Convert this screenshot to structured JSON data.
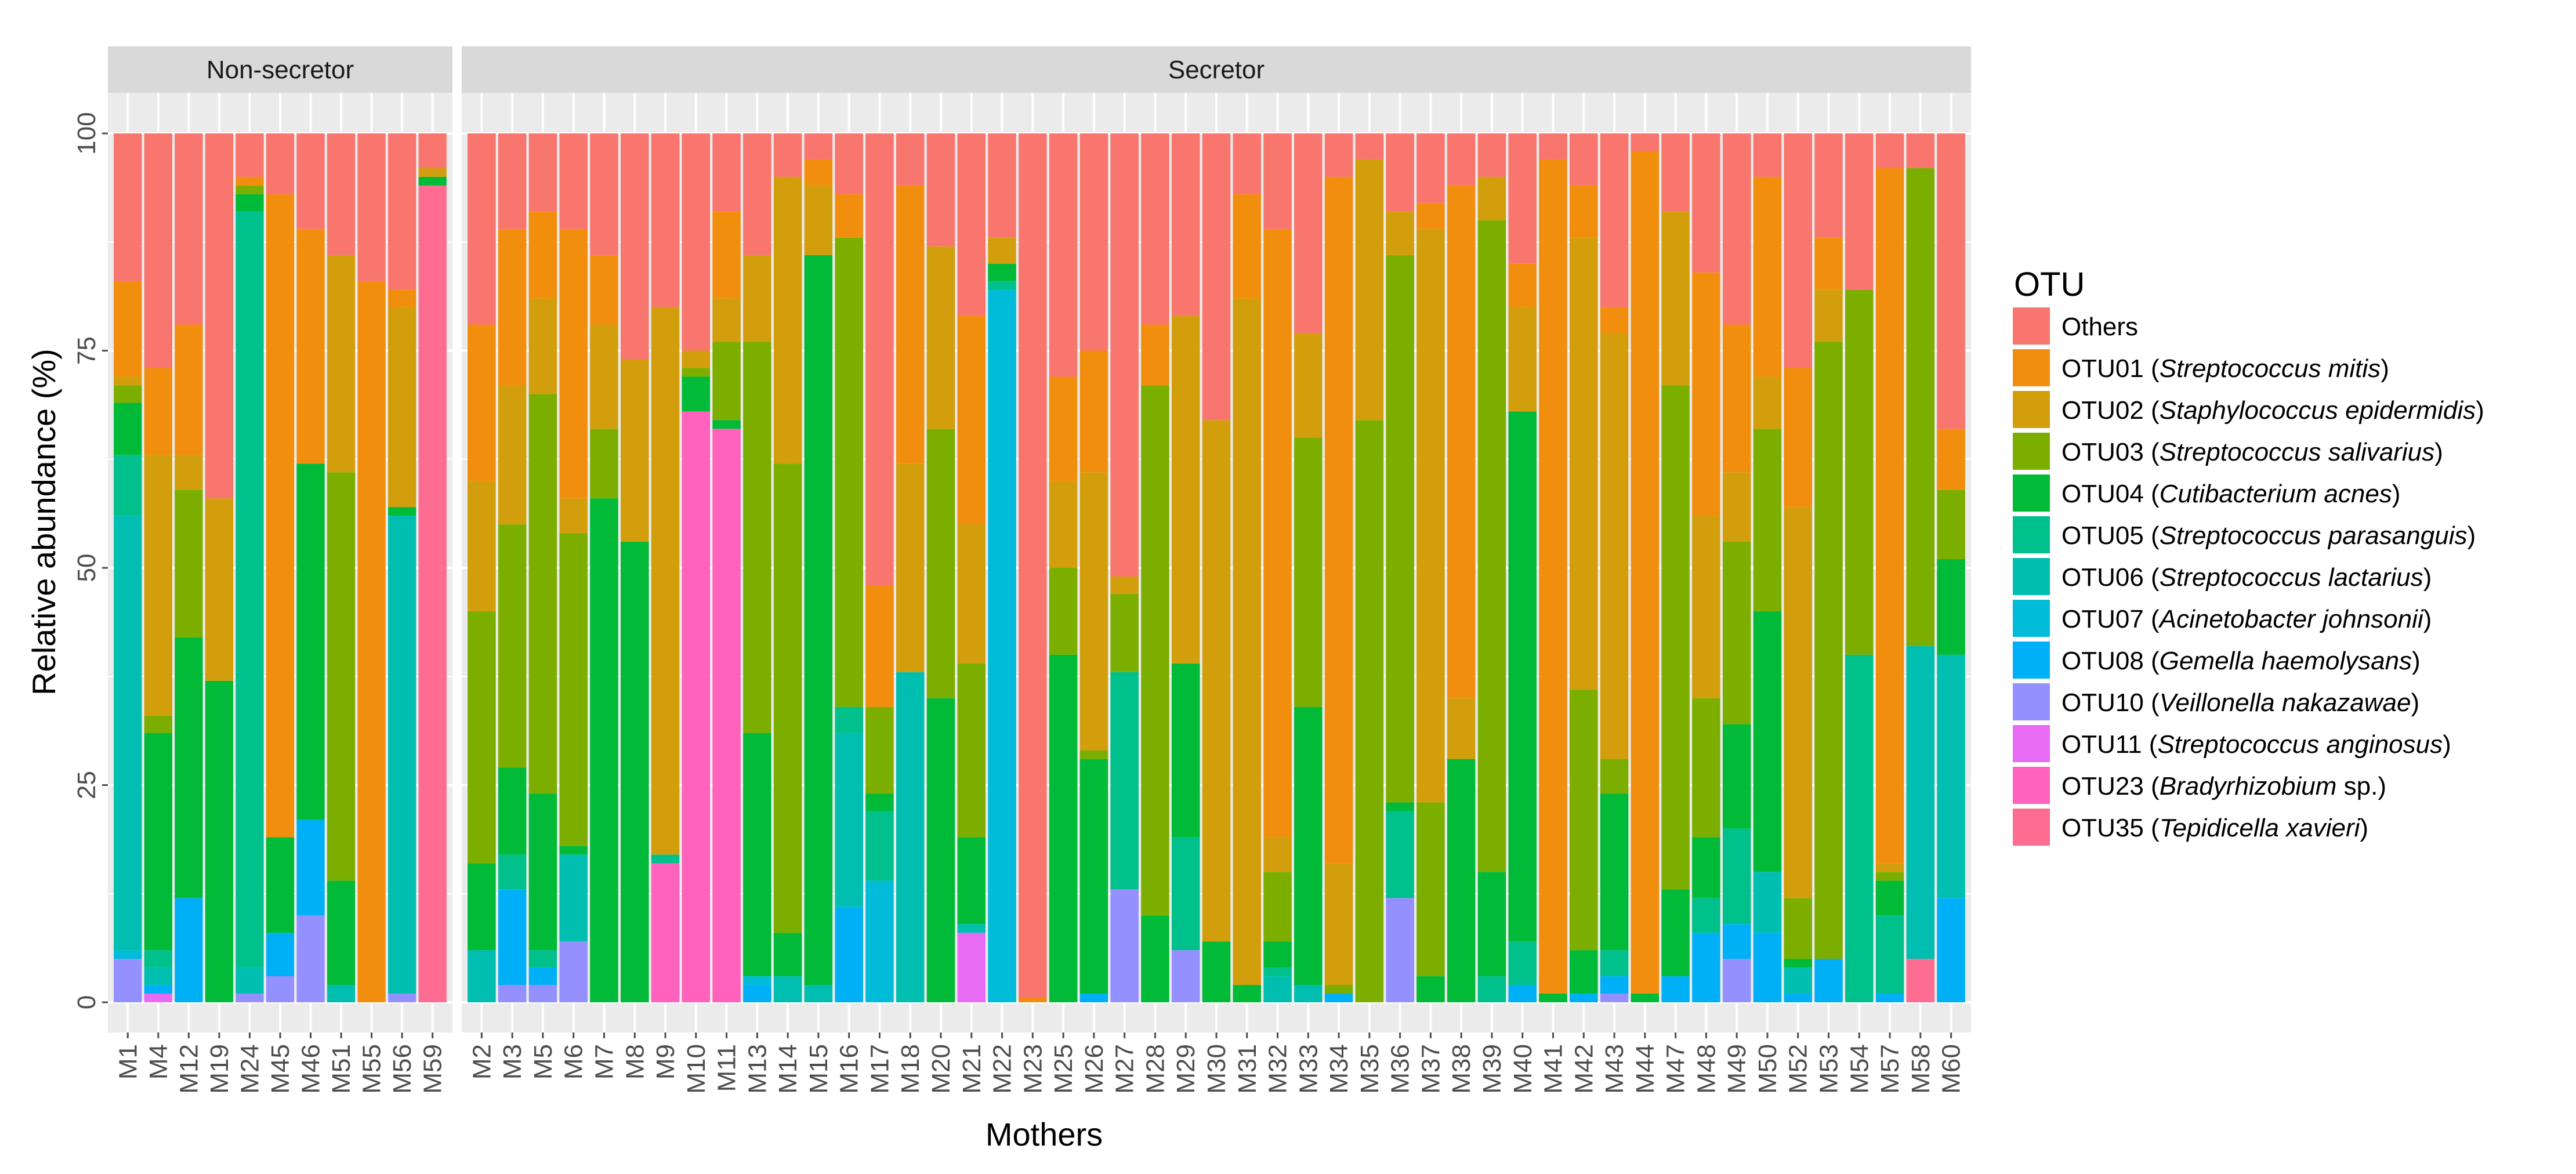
{
  "chart_data": {
    "type": "stacked-bar",
    "xlabel": "Mothers",
    "ylabel": "Relative abundance (%)",
    "ylim": [
      0,
      100
    ],
    "yticks": [
      0,
      25,
      50,
      75,
      100
    ],
    "legend_title": "OTU",
    "legend_position": "right",
    "series": [
      {
        "id": "others",
        "label": "Others",
        "italic": "",
        "suffix": "",
        "color": "#F8766D"
      },
      {
        "id": "otu01",
        "label": "OTU01",
        "italic": "Streptococcus mitis",
        "suffix": "",
        "color": "#F28E0E"
      },
      {
        "id": "otu02",
        "label": "OTU02",
        "italic": "Staphylococcus epidermidis",
        "suffix": "",
        "color": "#D29E0C"
      },
      {
        "id": "otu03",
        "label": "OTU03",
        "italic": "Streptococcus salivarius",
        "suffix": "",
        "color": "#7CAE00"
      },
      {
        "id": "otu04",
        "label": "OTU04",
        "italic": "Cutibacterium acnes",
        "suffix": "",
        "color": "#00BA38"
      },
      {
        "id": "otu05",
        "label": "OTU05",
        "italic": "Streptococcus parasanguis",
        "suffix": "",
        "color": "#00C08B"
      },
      {
        "id": "otu06",
        "label": "OTU06",
        "italic": "Streptococcus lactarius",
        "suffix": "",
        "color": "#00BFB0"
      },
      {
        "id": "otu07",
        "label": "OTU07",
        "italic": "Acinetobacter johnsonii",
        "suffix": "",
        "color": "#00BCD8"
      },
      {
        "id": "otu08",
        "label": "OTU08",
        "italic": "Gemella haemolysans",
        "suffix": "",
        "color": "#00B0F6"
      },
      {
        "id": "otu10",
        "label": "OTU10",
        "italic": "Veillonella nakazawae",
        "suffix": "",
        "color": "#9590FF"
      },
      {
        "id": "otu11",
        "label": "OTU11",
        "italic": "Streptococcus anginosus",
        "suffix": "",
        "color": "#E76BF3"
      },
      {
        "id": "otu23",
        "label": "OTU23",
        "italic": "Bradyrhizobium",
        "suffix": " sp.",
        "color": "#FF62BC"
      },
      {
        "id": "otu35",
        "label": "OTU35",
        "italic": "Tepidicella xavieri",
        "suffix": "",
        "color": "#FF6C91"
      }
    ],
    "panels": [
      {
        "label": "Non-secretor",
        "bars": [
          {
            "name": "M1",
            "segments": {
              "otu10": 5,
              "otu07": 1,
              "otu06": 50,
              "otu05": 7,
              "otu04": 6,
              "otu03": 2,
              "otu02": 1,
              "otu01": 11,
              "others": 17
            }
          },
          {
            "name": "M4",
            "segments": {
              "otu11": 1,
              "otu08": 1,
              "otu06": 2,
              "otu05": 2,
              "otu04": 25,
              "otu03": 2,
              "otu02": 30,
              "otu01": 10,
              "others": 27
            }
          },
          {
            "name": "M12",
            "segments": {
              "otu08": 12,
              "otu04": 30,
              "otu03": 17,
              "otu02": 4,
              "otu01": 15,
              "others": 22
            }
          },
          {
            "name": "M19",
            "segments": {
              "otu04": 37,
              "otu02": 21,
              "others": 42
            }
          },
          {
            "name": "M24",
            "segments": {
              "otu10": 1,
              "otu06": 3,
              "otu05": 87,
              "otu04": 2,
              "otu03": 1,
              "otu01": 1,
              "others": 5
            }
          },
          {
            "name": "M45",
            "segments": {
              "otu10": 3,
              "otu08": 5,
              "otu04": 11,
              "otu01": 74,
              "others": 7
            }
          },
          {
            "name": "M46",
            "segments": {
              "otu10": 10,
              "otu08": 11,
              "otu04": 41,
              "otu01": 27,
              "others": 11
            }
          },
          {
            "name": "M51",
            "segments": {
              "otu06": 2,
              "otu04": 12,
              "otu03": 47,
              "otu02": 25,
              "others": 14
            }
          },
          {
            "name": "M55",
            "segments": {
              "otu01": 83,
              "others": 17
            }
          },
          {
            "name": "M56",
            "segments": {
              "otu10": 1,
              "otu06": 55,
              "otu04": 1,
              "otu02": 23,
              "otu01": 2,
              "others": 18
            }
          },
          {
            "name": "M59",
            "segments": {
              "otu35": 94,
              "otu04": 1,
              "otu02": 1,
              "others": 4
            }
          }
        ]
      },
      {
        "label": "Secretor",
        "bars": [
          {
            "name": "M2",
            "segments": {
              "otu06": 6,
              "otu04": 10,
              "otu03": 29,
              "otu02": 15,
              "otu01": 18,
              "others": 22
            }
          },
          {
            "name": "M3",
            "segments": {
              "otu10": 2,
              "otu08": 11,
              "otu05": 4,
              "otu04": 10,
              "otu03": 28,
              "otu02": 16,
              "otu01": 18,
              "others": 11
            }
          },
          {
            "name": "M5",
            "segments": {
              "otu10": 2,
              "otu08": 2,
              "otu05": 2,
              "otu04": 18,
              "otu03": 46,
              "otu02": 11,
              "otu01": 10,
              "others": 9
            }
          },
          {
            "name": "M6",
            "segments": {
              "otu10": 7,
              "otu06": 10,
              "otu04": 1,
              "otu03": 36,
              "otu02": 4,
              "otu01": 31,
              "others": 11
            }
          },
          {
            "name": "M7",
            "segments": {
              "otu04": 58,
              "otu03": 8,
              "otu02": 12,
              "otu01": 8,
              "others": 14
            }
          },
          {
            "name": "M8",
            "segments": {
              "otu04": 53,
              "otu02": 21,
              "others": 26
            }
          },
          {
            "name": "M9",
            "segments": {
              "otu23": 16,
              "otu05": 1,
              "otu02": 63,
              "others": 20
            }
          },
          {
            "name": "M10",
            "segments": {
              "otu23": 68,
              "otu04": 4,
              "otu03": 1,
              "otu02": 2,
              "others": 25
            }
          },
          {
            "name": "M11",
            "segments": {
              "otu23": 66,
              "otu04": 1,
              "otu03": 9,
              "otu02": 5,
              "otu01": 10,
              "others": 9
            }
          },
          {
            "name": "M13",
            "segments": {
              "otu08": 2,
              "otu07": 1,
              "otu04": 28,
              "otu03": 45,
              "otu02": 10,
              "others": 14
            }
          },
          {
            "name": "M14",
            "segments": {
              "otu06": 3,
              "otu04": 5,
              "otu03": 54,
              "otu02": 33,
              "others": 5
            }
          },
          {
            "name": "M15",
            "segments": {
              "otu06": 2,
              "otu04": 84,
              "otu02": 8,
              "otu01": 3,
              "others": 3
            }
          },
          {
            "name": "M16",
            "segments": {
              "otu08": 11,
              "otu06": 20,
              "otu05": 3,
              "otu03": 54,
              "otu01": 5,
              "others": 7
            }
          },
          {
            "name": "M17",
            "segments": {
              "otu07": 14,
              "otu05": 8,
              "otu04": 2,
              "otu03": 10,
              "otu01": 14,
              "others": 52
            }
          },
          {
            "name": "M18",
            "segments": {
              "otu06": 38,
              "otu02": 24,
              "otu01": 32,
              "others": 6
            }
          },
          {
            "name": "M20",
            "segments": {
              "otu04": 35,
              "otu03": 31,
              "otu02": 21,
              "others": 13
            }
          },
          {
            "name": "M21",
            "segments": {
              "otu11": 8,
              "otu06": 1,
              "otu04": 10,
              "otu03": 20,
              "otu02": 16,
              "otu01": 24,
              "others": 21
            }
          },
          {
            "name": "M22",
            "segments": {
              "otu07": 82,
              "otu05": 1,
              "otu04": 2,
              "otu02": 3,
              "others": 12
            }
          },
          {
            "name": "M23",
            "segments": {
              "otu01": 0.5,
              "others": 99.5
            }
          },
          {
            "name": "M25",
            "segments": {
              "otu04": 40,
              "otu03": 10,
              "otu02": 10,
              "otu01": 12,
              "others": 28
            }
          },
          {
            "name": "M26",
            "segments": {
              "otu08": 1,
              "otu04": 27,
              "otu03": 1,
              "otu02": 32,
              "otu01": 14,
              "others": 25
            }
          },
          {
            "name": "M27",
            "segments": {
              "otu10": 13,
              "otu05": 25,
              "otu03": 9,
              "otu02": 2,
              "others": 51
            }
          },
          {
            "name": "M28",
            "segments": {
              "otu04": 10,
              "otu03": 61,
              "otu01": 7,
              "others": 22
            }
          },
          {
            "name": "M29",
            "segments": {
              "otu10": 6,
              "otu05": 13,
              "otu04": 20,
              "otu02": 40,
              "others": 21
            }
          },
          {
            "name": "M30",
            "segments": {
              "otu04": 7,
              "otu02": 60,
              "others": 33
            }
          },
          {
            "name": "M31",
            "segments": {
              "otu04": 2,
              "otu02": 79,
              "otu01": 12,
              "others": 7
            }
          },
          {
            "name": "M32",
            "segments": {
              "otu06": 3,
              "otu05": 1,
              "otu04": 3,
              "otu03": 8,
              "otu02": 4,
              "otu01": 70,
              "others": 11
            }
          },
          {
            "name": "M33",
            "segments": {
              "otu06": 2,
              "otu04": 32,
              "otu03": 31,
              "otu02": 12,
              "others": 23
            }
          },
          {
            "name": "M34",
            "segments": {
              "otu08": 1,
              "otu03": 1,
              "otu02": 14,
              "otu01": 79,
              "others": 5
            }
          },
          {
            "name": "M35",
            "segments": {
              "otu03": 67,
              "otu02": 30,
              "others": 3
            }
          },
          {
            "name": "M36",
            "segments": {
              "otu10": 12,
              "otu05": 10,
              "otu04": 1,
              "otu03": 63,
              "otu02": 5,
              "others": 9
            }
          },
          {
            "name": "M37",
            "segments": {
              "otu04": 3,
              "otu03": 20,
              "otu02": 66,
              "otu01": 3,
              "others": 8
            }
          },
          {
            "name": "M38",
            "segments": {
              "otu04": 28,
              "otu02": 7,
              "otu01": 59,
              "others": 6
            }
          },
          {
            "name": "M39",
            "segments": {
              "otu05": 3,
              "otu04": 12,
              "otu03": 75,
              "otu02": 5,
              "others": 5
            }
          },
          {
            "name": "M40",
            "segments": {
              "otu08": 2,
              "otu05": 5,
              "otu04": 61,
              "otu02": 12,
              "otu01": 5,
              "others": 15
            }
          },
          {
            "name": "M41",
            "segments": {
              "otu04": 1,
              "otu01": 96,
              "others": 3
            }
          },
          {
            "name": "M42",
            "segments": {
              "otu08": 1,
              "otu04": 5,
              "otu03": 30,
              "otu02": 52,
              "otu01": 6,
              "others": 6
            }
          },
          {
            "name": "M43",
            "segments": {
              "otu10": 1,
              "otu08": 2,
              "otu05": 3,
              "otu04": 18,
              "otu03": 4,
              "otu02": 49,
              "otu01": 3,
              "others": 20
            }
          },
          {
            "name": "M44",
            "segments": {
              "otu04": 1,
              "otu01": 97,
              "others": 2
            }
          },
          {
            "name": "M47",
            "segments": {
              "otu08": 3,
              "otu04": 10,
              "otu03": 58,
              "otu02": 20,
              "others": 9
            }
          },
          {
            "name": "M48",
            "segments": {
              "otu08": 8,
              "otu05": 4,
              "otu04": 7,
              "otu03": 16,
              "otu02": 21,
              "otu01": 28,
              "others": 16
            }
          },
          {
            "name": "M49",
            "segments": {
              "otu10": 5,
              "otu08": 4,
              "otu05": 11,
              "otu04": 12,
              "otu03": 21,
              "otu02": 8,
              "otu01": 17,
              "others": 22
            }
          },
          {
            "name": "M50",
            "segments": {
              "otu08": 8,
              "otu06": 7,
              "otu04": 30,
              "otu03": 21,
              "otu02": 6,
              "otu01": 23,
              "others": 5
            }
          },
          {
            "name": "M52",
            "segments": {
              "otu08": 1,
              "otu06": 3,
              "otu04": 1,
              "otu03": 7,
              "otu02": 45,
              "otu01": 16,
              "others": 27
            }
          },
          {
            "name": "M53",
            "segments": {
              "otu08": 5,
              "otu03": 71,
              "otu02": 6,
              "otu01": 6,
              "others": 12
            }
          },
          {
            "name": "M54",
            "segments": {
              "otu05": 40,
              "otu03": 42,
              "others": 18
            }
          },
          {
            "name": "M57",
            "segments": {
              "otu08": 1,
              "otu05": 9,
              "otu04": 4,
              "otu03": 1,
              "otu02": 1,
              "otu01": 80,
              "others": 4
            }
          },
          {
            "name": "M58",
            "segments": {
              "otu35": 5,
              "otu06": 36,
              "otu03": 55,
              "others": 4
            }
          },
          {
            "name": "M60",
            "segments": {
              "otu08": 12,
              "otu06": 28,
              "otu04": 11,
              "otu03": 8,
              "otu01": 7,
              "others": 34
            }
          }
        ]
      }
    ]
  }
}
